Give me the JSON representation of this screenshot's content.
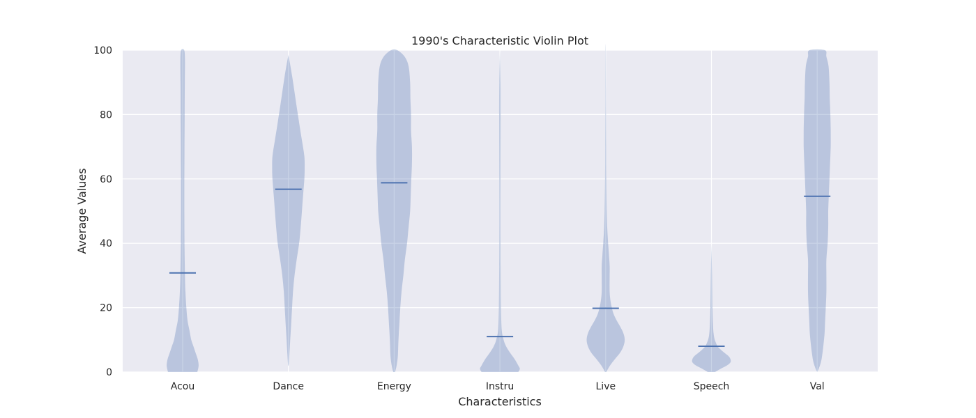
{
  "chart_data": {
    "type": "violin",
    "title": "1990's Characteristic Violin Plot",
    "xlabel": "Characteristics",
    "ylabel": "Average Values",
    "ylim": [
      0,
      100
    ],
    "yticks": [
      0,
      20,
      40,
      60,
      80,
      100
    ],
    "grid": true,
    "categories": [
      "Acou",
      "Dance",
      "Energy",
      "Instru",
      "Live",
      "Speech",
      "Val"
    ],
    "means": [
      30.8,
      56.8,
      58.8,
      11.0,
      19.8,
      8.0,
      54.6
    ],
    "colors": {
      "background": "#eaeaf2",
      "grid": "#ffffff",
      "violin_fill": "#4c72b0",
      "mean_line": "#4c72b0"
    },
    "violins": [
      {
        "name": "Acou",
        "min": 0,
        "max": 100,
        "profile": [
          [
            0,
            0.48
          ],
          [
            2,
            0.52
          ],
          [
            4,
            0.49
          ],
          [
            6,
            0.42
          ],
          [
            8,
            0.35
          ],
          [
            10,
            0.28
          ],
          [
            13,
            0.22
          ],
          [
            16,
            0.16
          ],
          [
            20,
            0.12
          ],
          [
            25,
            0.09
          ],
          [
            30,
            0.075
          ],
          [
            40,
            0.06
          ],
          [
            50,
            0.055
          ],
          [
            60,
            0.055
          ],
          [
            70,
            0.06
          ],
          [
            80,
            0.065
          ],
          [
            90,
            0.07
          ],
          [
            97,
            0.075
          ],
          [
            100,
            0.05
          ]
        ]
      },
      {
        "name": "Dance",
        "min": 2,
        "max": 98,
        "profile": [
          [
            2,
            0.01
          ],
          [
            5,
            0.03
          ],
          [
            10,
            0.06
          ],
          [
            15,
            0.09
          ],
          [
            20,
            0.12
          ],
          [
            25,
            0.15
          ],
          [
            30,
            0.2
          ],
          [
            35,
            0.27
          ],
          [
            40,
            0.35
          ],
          [
            45,
            0.4
          ],
          [
            50,
            0.44
          ],
          [
            55,
            0.48
          ],
          [
            60,
            0.52
          ],
          [
            63,
            0.53
          ],
          [
            67,
            0.52
          ],
          [
            72,
            0.44
          ],
          [
            78,
            0.34
          ],
          [
            85,
            0.23
          ],
          [
            92,
            0.12
          ],
          [
            98,
            0.01
          ]
        ]
      },
      {
        "name": "Energy",
        "min": 0,
        "max": 100,
        "profile": [
          [
            0,
            0.03
          ],
          [
            2,
            0.08
          ],
          [
            5,
            0.12
          ],
          [
            10,
            0.14
          ],
          [
            15,
            0.17
          ],
          [
            20,
            0.2
          ],
          [
            25,
            0.24
          ],
          [
            30,
            0.3
          ],
          [
            35,
            0.35
          ],
          [
            40,
            0.42
          ],
          [
            45,
            0.47
          ],
          [
            50,
            0.52
          ],
          [
            55,
            0.54
          ],
          [
            60,
            0.56
          ],
          [
            65,
            0.58
          ],
          [
            70,
            0.58
          ],
          [
            75,
            0.55
          ],
          [
            80,
            0.55
          ],
          [
            85,
            0.53
          ],
          [
            90,
            0.52
          ],
          [
            95,
            0.47
          ],
          [
            98,
            0.34
          ],
          [
            100,
            0.1
          ]
        ]
      },
      {
        "name": "Instru",
        "min": 0,
        "max": 100,
        "profile": [
          [
            0,
            0.6
          ],
          [
            1,
            0.65
          ],
          [
            2,
            0.6
          ],
          [
            4,
            0.48
          ],
          [
            6,
            0.33
          ],
          [
            8,
            0.2
          ],
          [
            10,
            0.12
          ],
          [
            13,
            0.06
          ],
          [
            20,
            0.035
          ],
          [
            30,
            0.025
          ],
          [
            40,
            0.02
          ],
          [
            60,
            0.02
          ],
          [
            80,
            0.025
          ],
          [
            90,
            0.02
          ],
          [
            100,
            0.0
          ]
        ]
      },
      {
        "name": "Live",
        "min": 0,
        "max": 100,
        "profile": [
          [
            0,
            0.02
          ],
          [
            2,
            0.14
          ],
          [
            4,
            0.3
          ],
          [
            6,
            0.47
          ],
          [
            8,
            0.58
          ],
          [
            10,
            0.62
          ],
          [
            12,
            0.58
          ],
          [
            14,
            0.48
          ],
          [
            16,
            0.36
          ],
          [
            18,
            0.26
          ],
          [
            20,
            0.2
          ],
          [
            22,
            0.16
          ],
          [
            25,
            0.13
          ],
          [
            30,
            0.13
          ],
          [
            33,
            0.13
          ],
          [
            36,
            0.11
          ],
          [
            40,
            0.08
          ],
          [
            45,
            0.05
          ],
          [
            50,
            0.035
          ],
          [
            60,
            0.02
          ],
          [
            70,
            0.015
          ],
          [
            85,
            0.01
          ],
          [
            100,
            0.005
          ]
        ]
      },
      {
        "name": "Speech",
        "min": 0,
        "max": 40,
        "profile": [
          [
            0,
            0.12
          ],
          [
            1,
            0.3
          ],
          [
            2,
            0.5
          ],
          [
            3,
            0.62
          ],
          [
            4,
            0.62
          ],
          [
            5,
            0.55
          ],
          [
            6,
            0.42
          ],
          [
            7,
            0.3
          ],
          [
            8,
            0.2
          ],
          [
            10,
            0.11
          ],
          [
            12,
            0.07
          ],
          [
            15,
            0.05
          ],
          [
            20,
            0.035
          ],
          [
            30,
            0.02
          ],
          [
            40,
            0.0
          ]
        ]
      },
      {
        "name": "Val",
        "min": 0,
        "max": 100,
        "profile": [
          [
            0,
            0.0
          ],
          [
            1,
            0.05
          ],
          [
            3,
            0.12
          ],
          [
            5,
            0.16
          ],
          [
            8,
            0.2
          ],
          [
            12,
            0.24
          ],
          [
            16,
            0.26
          ],
          [
            20,
            0.28
          ],
          [
            25,
            0.3
          ],
          [
            30,
            0.3
          ],
          [
            35,
            0.3
          ],
          [
            40,
            0.34
          ],
          [
            45,
            0.36
          ],
          [
            50,
            0.36
          ],
          [
            55,
            0.38
          ],
          [
            60,
            0.4
          ],
          [
            65,
            0.42
          ],
          [
            70,
            0.44
          ],
          [
            75,
            0.44
          ],
          [
            80,
            0.43
          ],
          [
            85,
            0.41
          ],
          [
            90,
            0.4
          ],
          [
            95,
            0.37
          ],
          [
            98,
            0.3
          ],
          [
            100,
            0.25
          ]
        ]
      }
    ]
  }
}
